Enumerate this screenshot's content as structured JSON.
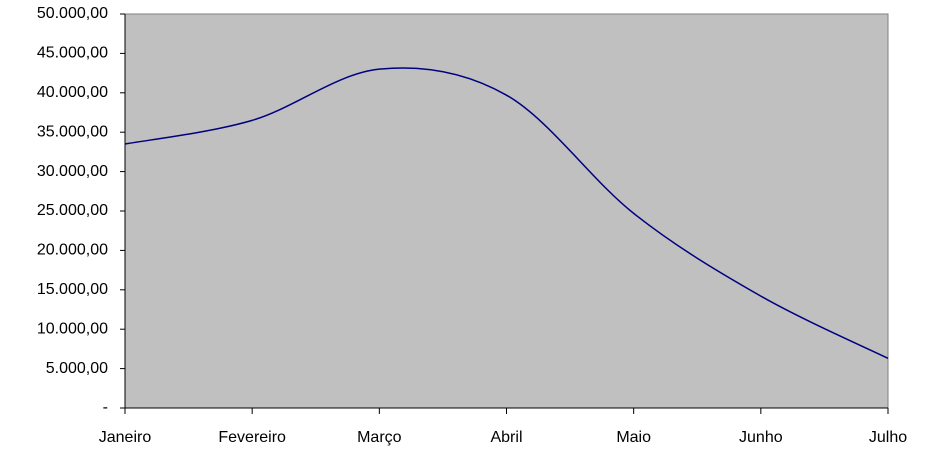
{
  "chart_data": {
    "type": "line",
    "categories": [
      "Janeiro",
      "Fevereiro",
      "Março",
      "Abril",
      "Maio",
      "Junho",
      "Julho"
    ],
    "values": [
      33500,
      36500,
      43000,
      39700,
      24700,
      14200,
      6300
    ],
    "color": "#000080",
    "smooth": true,
    "plot_background": "#c0c0c0",
    "ylim": [
      0,
      50000
    ],
    "yticks": [
      {
        "value": 0,
        "label": "-"
      },
      {
        "value": 5000,
        "label": "5.000,00"
      },
      {
        "value": 10000,
        "label": "10.000,00"
      },
      {
        "value": 15000,
        "label": "15.000,00"
      },
      {
        "value": 20000,
        "label": "20.000,00"
      },
      {
        "value": 25000,
        "label": "25.000,00"
      },
      {
        "value": 30000,
        "label": "30.000,00"
      },
      {
        "value": 35000,
        "label": "35.000,00"
      },
      {
        "value": 40000,
        "label": "40.000,00"
      },
      {
        "value": 45000,
        "label": "45.000,00"
      },
      {
        "value": 50000,
        "label": "50.000,00"
      }
    ]
  }
}
